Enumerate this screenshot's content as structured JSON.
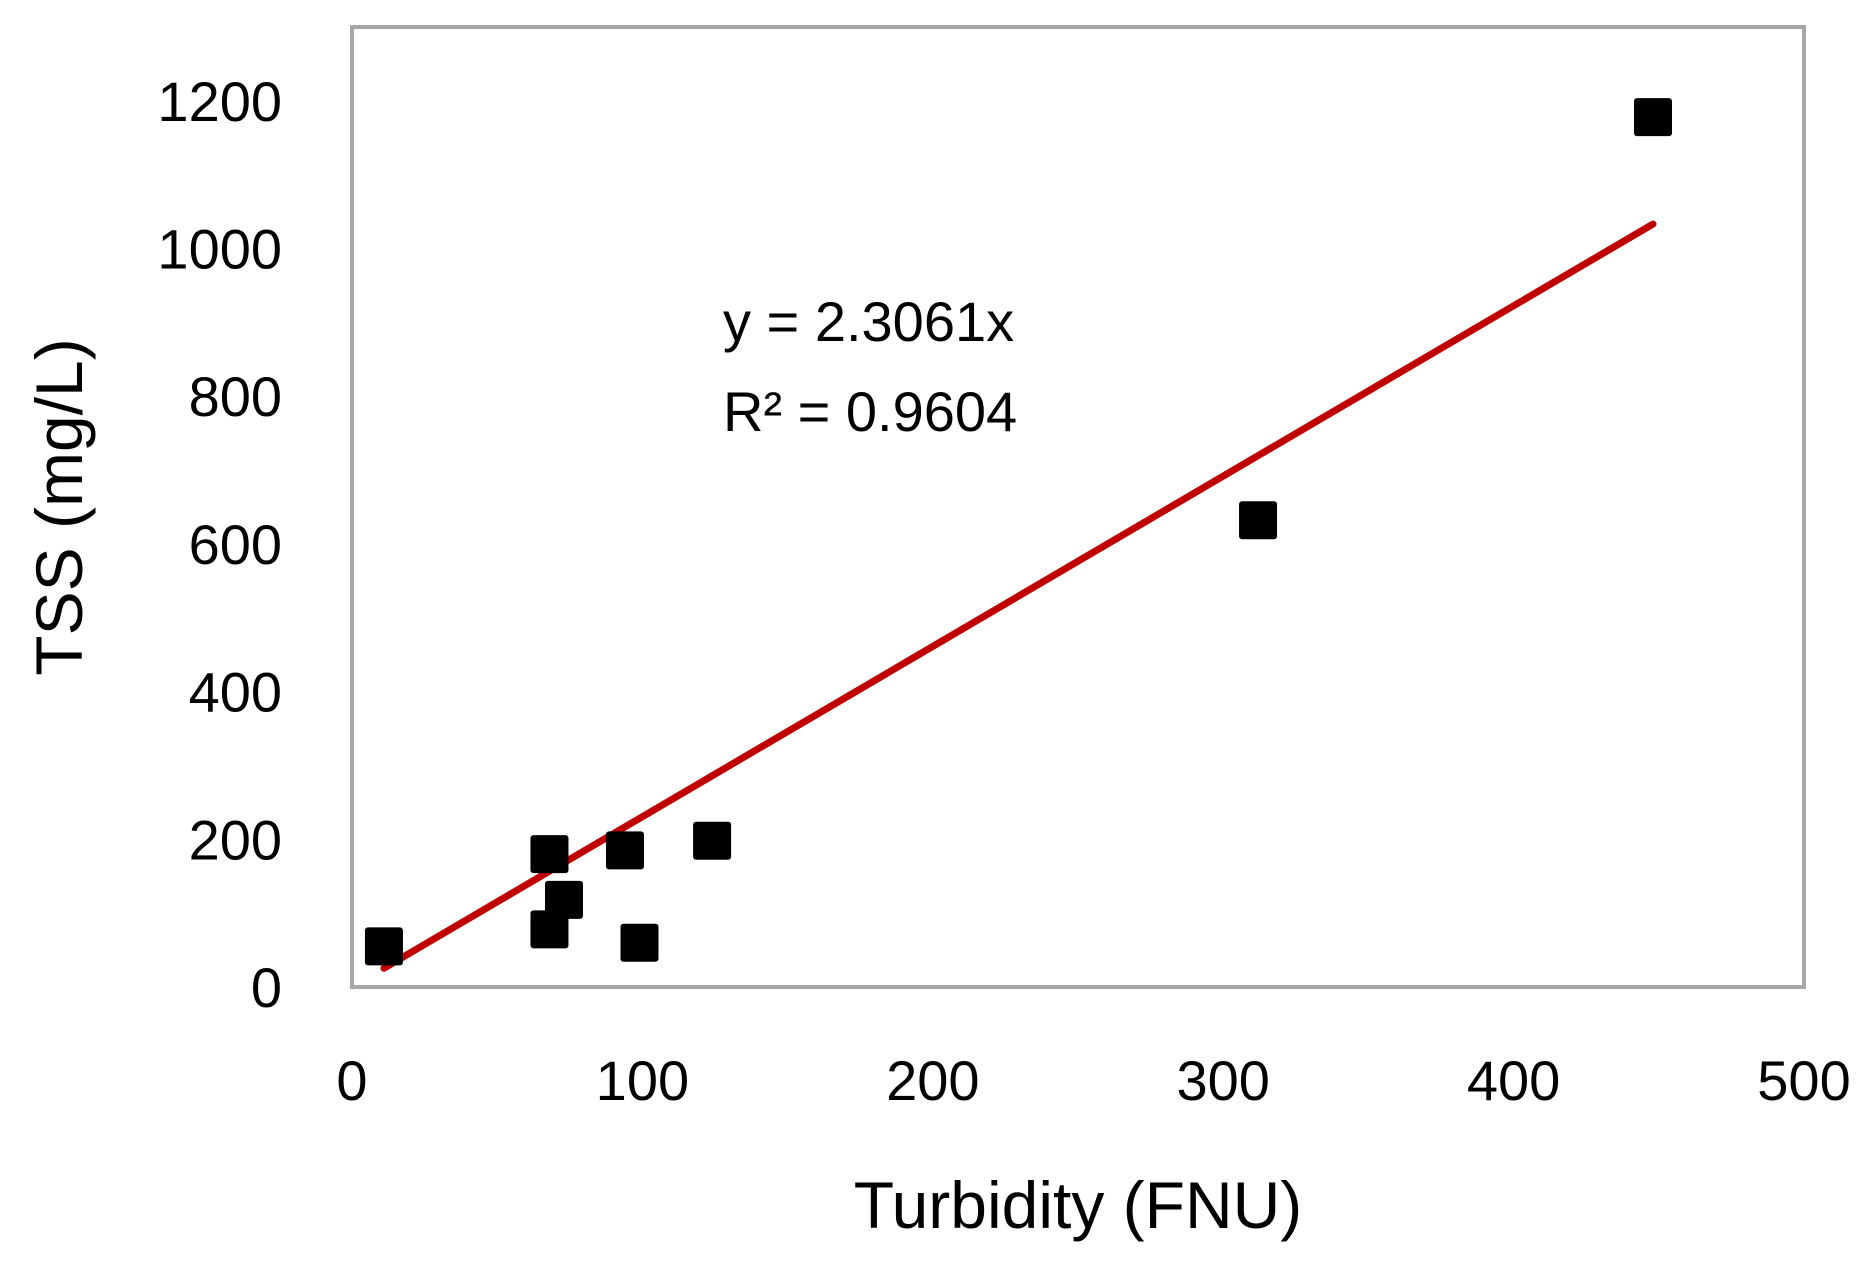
{
  "chart_data": {
    "type": "scatter",
    "title": "",
    "xlabel": "Turbidity (FNU)",
    "ylabel": "TSS (mg/L)",
    "xlim": [
      0,
      500
    ],
    "ylim": [
      0,
      1300
    ],
    "xticks": [
      0,
      100,
      200,
      300,
      400,
      500
    ],
    "yticks": [
      0,
      200,
      400,
      600,
      800,
      1000,
      1200
    ],
    "xtick_labels": [
      "0",
      "100",
      "200",
      "300",
      "400",
      "500"
    ],
    "ytick_labels": [
      "0",
      "200",
      "400",
      "600",
      "800",
      "1000",
      "1200"
    ],
    "grid": false,
    "series": [
      {
        "marker": "square",
        "color": "#000000",
        "points": [
          {
            "x": 11,
            "y": 55
          },
          {
            "x": 68,
            "y": 180
          },
          {
            "x": 68,
            "y": 78
          },
          {
            "x": 73,
            "y": 118
          },
          {
            "x": 94,
            "y": 185
          },
          {
            "x": 99,
            "y": 60
          },
          {
            "x": 124,
            "y": 198
          },
          {
            "x": 312,
            "y": 632
          },
          {
            "x": 448,
            "y": 1178
          }
        ]
      }
    ],
    "trendline": {
      "type": "linear-through-origin",
      "slope": 2.3061,
      "x_range": [
        11,
        448
      ],
      "color": "#c00000"
    },
    "annotations": {
      "equation": "y = 2.3061x",
      "r_squared": "R² = 0.9604"
    },
    "colors": {
      "marker": "#000000",
      "trendline": "#c00000",
      "plot_border": "#a6a6a6"
    }
  }
}
